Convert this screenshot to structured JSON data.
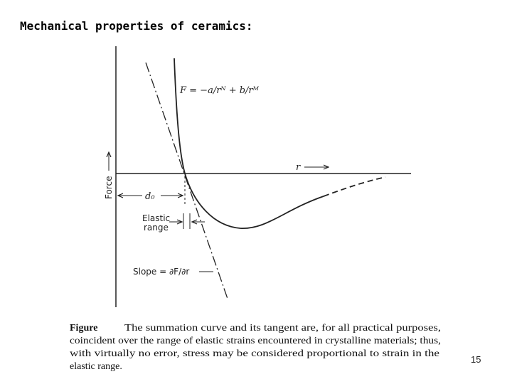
{
  "title": "Mechanical properties of ceramics:",
  "figure": {
    "formula": "F = −a/rᴺ + b/rᴹ",
    "x_axis_label": "r",
    "y_axis_label": "Force",
    "distance_label": "d₀",
    "elastic_label": [
      "Elastic",
      "range"
    ],
    "slope_label": "Slope = ∂F/∂r"
  },
  "caption": {
    "lead": "Figure",
    "lines": [
      "The summation curve and its tangent are, for all practical purposes,",
      "coincident over the range of elastic strains encountered in crystalline materials; thus,",
      "with virtually no error, stress may be considered proportional to strain in the",
      "elastic range."
    ]
  },
  "page_number": "15"
}
